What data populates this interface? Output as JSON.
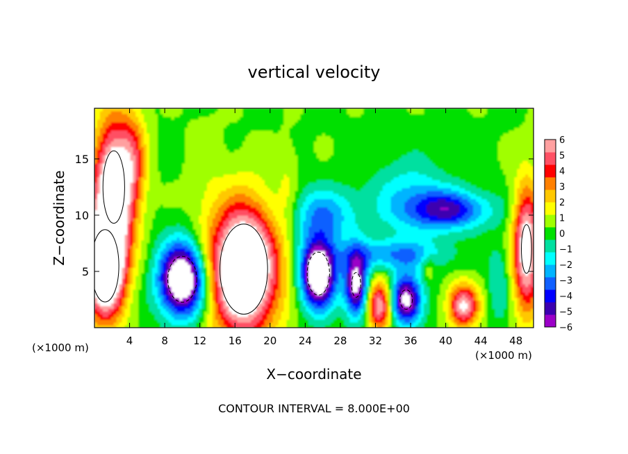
{
  "chart_data": {
    "type": "heatmap",
    "title": "vertical velocity",
    "xlabel": "X−coordinate",
    "ylabel": "Z−coordinate",
    "x_unit_label_left": "(×1000 m)",
    "x_unit_label_right": "(×1000 m)",
    "xlim": [
      0,
      50
    ],
    "ylim": [
      0,
      19.5
    ],
    "x_ticks": [
      4,
      8,
      12,
      16,
      20,
      24,
      28,
      32,
      36,
      40,
      44,
      48
    ],
    "x_tick_labels": [
      "4",
      "8",
      "12",
      "16",
      "20",
      "24",
      "28",
      "32",
      "36",
      "40",
      "44",
      "48"
    ],
    "y_ticks": [
      5,
      10,
      15
    ],
    "y_tick_labels": [
      "5",
      "10",
      "15"
    ],
    "footer": "CONTOUR INTERVAL = 8.000E+00",
    "colorbar": {
      "min": -6,
      "max": 6,
      "ticks": [
        "6",
        "5",
        "4",
        "3",
        "2",
        "1",
        "0",
        "−1",
        "−2",
        "−3",
        "−4",
        "−5",
        "−6"
      ],
      "colors": [
        "#9b00c8",
        "#3c00b0",
        "#0000ff",
        "#1060ff",
        "#00b4ff",
        "#00ffff",
        "#00e0a0",
        "#00e000",
        "#a0ff00",
        "#ffff00",
        "#ffc800",
        "#ff8000",
        "#ff0000",
        "#ff5064",
        "#ffa0a0"
      ]
    },
    "blobs": [
      {
        "x": 2.2,
        "z": 12.5,
        "rx": 2.3,
        "rz": 6.0,
        "w": 8
      },
      {
        "x": 1.2,
        "z": 5.5,
        "rx": 2.2,
        "rz": 4.5,
        "w": 10
      },
      {
        "x": 17.0,
        "z": 5.2,
        "rx": 3.8,
        "rz": 5.6,
        "w": 10
      },
      {
        "x": 10.0,
        "z": 4.3,
        "rx": 2.6,
        "rz": 3.2,
        "w": -9
      },
      {
        "x": 25.5,
        "z": 4.8,
        "rx": 2.0,
        "rz": 3.0,
        "w": -9
      },
      {
        "x": 29.8,
        "z": 3.8,
        "rx": 1.3,
        "rz": 2.8,
        "w": -7
      },
      {
        "x": 32.5,
        "z": 2.0,
        "rx": 1.4,
        "rz": 2.2,
        "w": 6
      },
      {
        "x": 35.5,
        "z": 2.5,
        "rx": 1.8,
        "rz": 2.2,
        "w": -7
      },
      {
        "x": 42.0,
        "z": 2.0,
        "rx": 1.7,
        "rz": 1.9,
        "w": 6
      },
      {
        "x": 49.2,
        "z": 7.0,
        "rx": 1.5,
        "rz": 5.5,
        "w": 7
      },
      {
        "x": 26.0,
        "z": 10.0,
        "rx": 4.0,
        "rz": 2.5,
        "w": -3
      },
      {
        "x": 36.0,
        "z": 11.5,
        "rx": 4.5,
        "rz": 3.5,
        "w": -2.2
      },
      {
        "x": 40.5,
        "z": 10.5,
        "rx": 4.5,
        "rz": 1.7,
        "w": -4.5
      },
      {
        "x": 34.0,
        "z": 6.5,
        "rx": 6.0,
        "rz": 1.4,
        "w": -3
      },
      {
        "x": 22.0,
        "z": 12.0,
        "rx": 1.2,
        "rz": 4.0,
        "w": 1
      },
      {
        "x": 12.5,
        "z": 13.0,
        "rx": 2.0,
        "rz": 6.0,
        "w": 0.5
      },
      {
        "x": 38.0,
        "z": 5.5,
        "rx": 0.8,
        "rz": 1.2,
        "w": 1.5
      },
      {
        "x": 4.5,
        "z": 15.0,
        "rx": 1.5,
        "rz": 4.5,
        "w": 2.5
      },
      {
        "x": 46.0,
        "z": 4.0,
        "rx": 1.2,
        "rz": 3.5,
        "w": -1.5
      }
    ]
  }
}
